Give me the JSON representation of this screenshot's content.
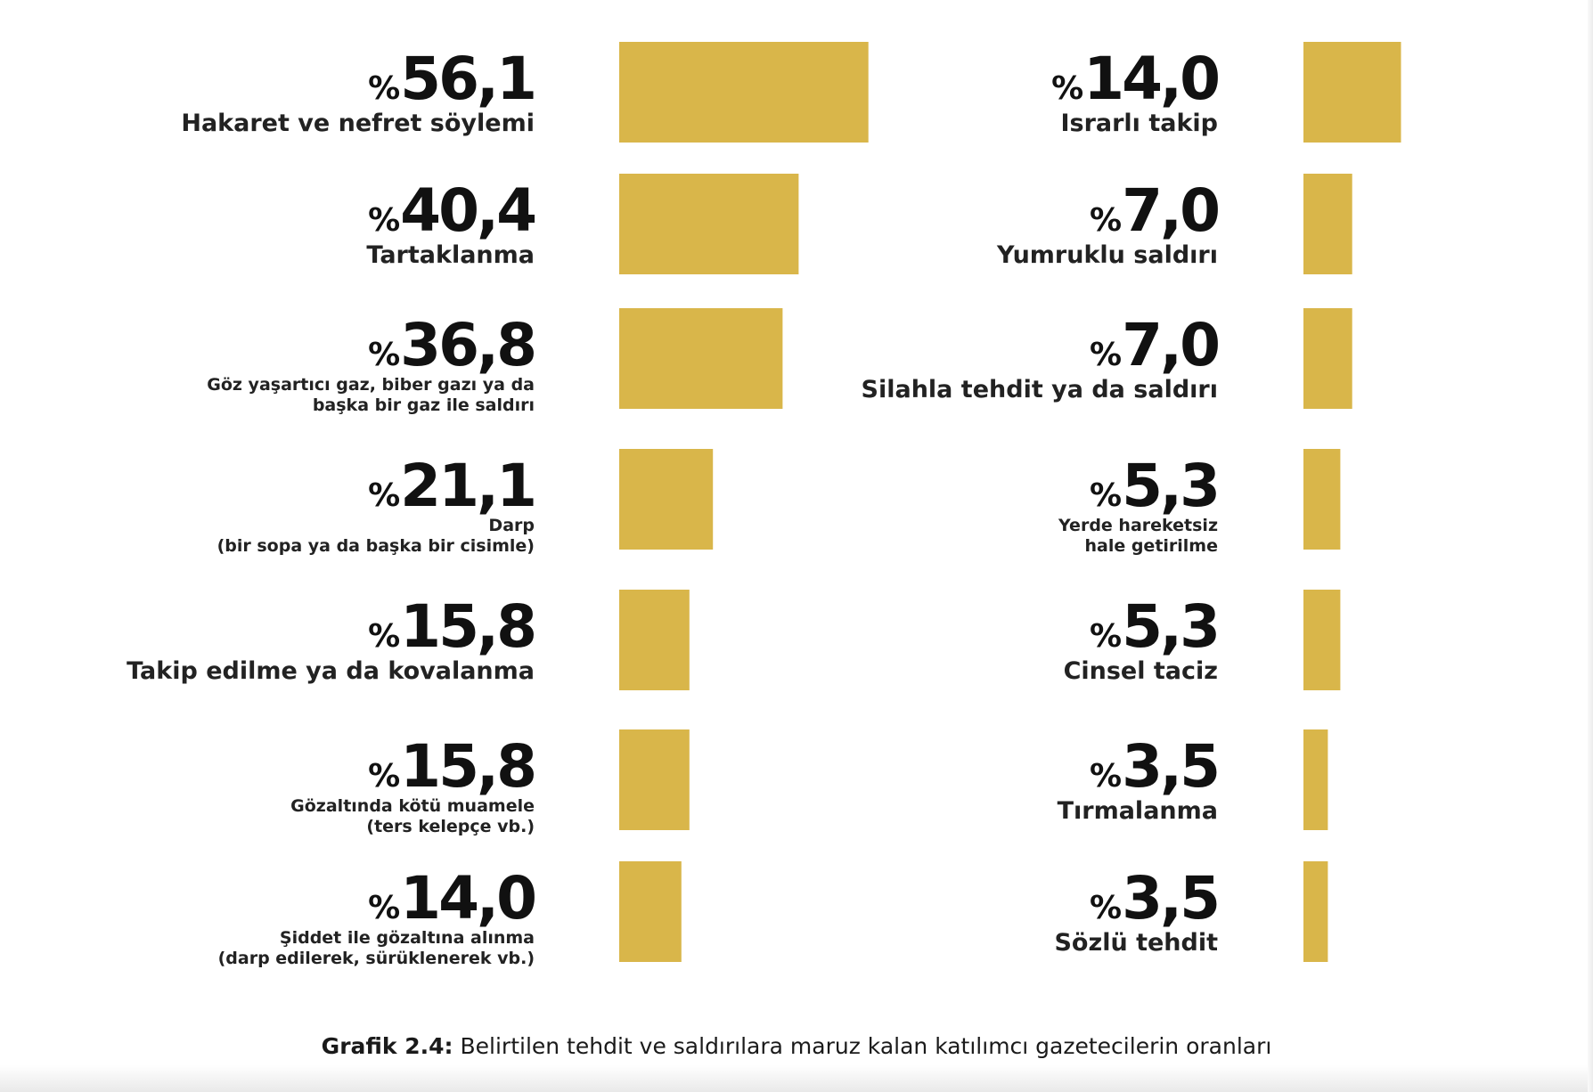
{
  "chart_data": {
    "type": "bar",
    "orientation": "horizontal",
    "percent_sign": "%",
    "bar_color": "#D9B64A",
    "columns": [
      {
        "items": [
          {
            "value": 56.1,
            "value_label": "56,1",
            "label_lines": [
              "Hakaret ve nefret söylemi"
            ],
            "label_size": "big"
          },
          {
            "value": 40.4,
            "value_label": "40,4",
            "label_lines": [
              "Tartaklanma"
            ],
            "label_size": "big"
          },
          {
            "value": 36.8,
            "value_label": "36,8",
            "label_lines": [
              "Göz yaşartıcı gaz, biber gazı ya da",
              "başka bir gaz ile saldırı"
            ],
            "label_size": "small"
          },
          {
            "value": 21.1,
            "value_label": "21,1",
            "label_lines": [
              "Darp",
              "(bir sopa ya da başka bir cisimle)"
            ],
            "label_size": "small"
          },
          {
            "value": 15.8,
            "value_label": "15,8",
            "label_lines": [
              "Takip edilme ya da kovalanma"
            ],
            "label_size": "big"
          },
          {
            "value": 15.8,
            "value_label": "15,8",
            "label_lines": [
              "Gözaltında kötü muamele",
              "(ters kelepçe vb.)"
            ],
            "label_size": "small"
          },
          {
            "value": 14.0,
            "value_label": "14,0",
            "label_lines": [
              "Şiddet ile gözaltına alınma",
              "(darp edilerek, sürüklenerek vb.)"
            ],
            "label_size": "small"
          }
        ]
      },
      {
        "items": [
          {
            "value": 14.0,
            "value_label": "14,0",
            "label_lines": [
              "Israrlı takip"
            ],
            "label_size": "big"
          },
          {
            "value": 7.0,
            "value_label": "7,0",
            "label_lines": [
              "Yumruklu saldırı"
            ],
            "label_size": "big"
          },
          {
            "value": 7.0,
            "value_label": "7,0",
            "label_lines": [
              "Silahla tehdit ya da saldırı"
            ],
            "label_size": "big"
          },
          {
            "value": 5.3,
            "value_label": "5,3",
            "label_lines": [
              "Yerde hareketsiz",
              "hale getirilme"
            ],
            "label_size": "small"
          },
          {
            "value": 5.3,
            "value_label": "5,3",
            "label_lines": [
              "Cinsel taciz"
            ],
            "label_size": "big"
          },
          {
            "value": 3.5,
            "value_label": "3,5",
            "label_lines": [
              "Tırmalanma"
            ],
            "label_size": "big"
          },
          {
            "value": 3.5,
            "value_label": "3,5",
            "label_lines": [
              "Sözlü tehdit"
            ],
            "label_size": "big"
          }
        ]
      }
    ]
  },
  "caption": {
    "prefix": "Grafik 2.4:",
    "text": " Belirtilen tehdit ve saldırılara maruz kalan katılımcı gazetecilerin oranları"
  }
}
